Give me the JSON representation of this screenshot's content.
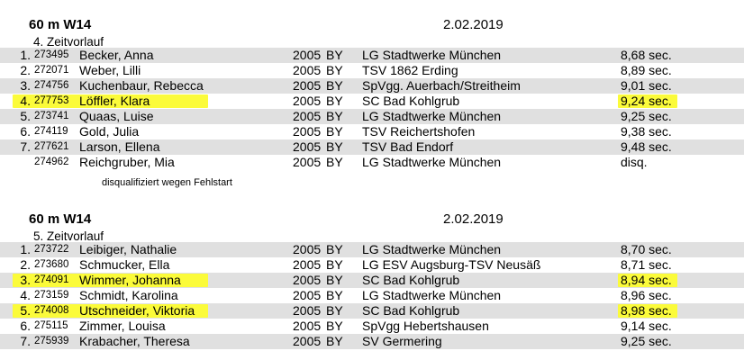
{
  "results": [
    {
      "event": "60 m W14",
      "date": "2.02.2019",
      "heat": "4. Zeitvorlauf",
      "rows": [
        {
          "place": "1.",
          "bib": "273495",
          "name": "Becker, Anna",
          "year": "2005",
          "state": "BY",
          "club": "LG Stadtwerke München",
          "time": "8,68 sec.",
          "highlight": false
        },
        {
          "place": "2.",
          "bib": "272071",
          "name": "Weber, Lilli",
          "year": "2005",
          "state": "BY",
          "club": "TSV 1862 Erding",
          "time": "8,89 sec.",
          "highlight": false
        },
        {
          "place": "3.",
          "bib": "274756",
          "name": "Kuchenbaur, Rebecca",
          "year": "2005",
          "state": "BY",
          "club": "SpVgg. Auerbach/Streitheim",
          "time": "9,01 sec.",
          "highlight": false
        },
        {
          "place": "4.",
          "bib": "277753",
          "name": "Löffler, Klara",
          "year": "2005",
          "state": "BY",
          "club": "SC Bad Kohlgrub",
          "time": "9,24 sec.",
          "highlight": true
        },
        {
          "place": "5.",
          "bib": "273741",
          "name": "Quaas, Luise",
          "year": "2005",
          "state": "BY",
          "club": "LG Stadtwerke München",
          "time": "9,25 sec.",
          "highlight": false
        },
        {
          "place": "6.",
          "bib": "274119",
          "name": "Gold, Julia",
          "year": "2005",
          "state": "BY",
          "club": "TSV Reichertshofen",
          "time": "9,38 sec.",
          "highlight": false
        },
        {
          "place": "7.",
          "bib": "277621",
          "name": "Larson, Ellena",
          "year": "2005",
          "state": "BY",
          "club": "TSV Bad Endorf",
          "time": "9,48 sec.",
          "highlight": false
        },
        {
          "place": "",
          "bib": "274962",
          "name": "Reichgruber, Mia",
          "year": "2005",
          "state": "BY",
          "club": "LG Stadtwerke München",
          "time": "disq.",
          "highlight": false
        }
      ],
      "note": "disqualifiziert wegen Fehlstart"
    },
    {
      "event": "60 m W14",
      "date": "2.02.2019",
      "heat": "5. Zeitvorlauf",
      "rows": [
        {
          "place": "1.",
          "bib": "273722",
          "name": "Leibiger, Nathalie",
          "year": "2005",
          "state": "BY",
          "club": "LG Stadtwerke München",
          "time": "8,70 sec.",
          "highlight": false
        },
        {
          "place": "2.",
          "bib": "273680",
          "name": "Schmucker, Ella",
          "year": "2005",
          "state": "BY",
          "club": "LG ESV Augsburg-TSV Neusäß",
          "time": "8,71 sec.",
          "highlight": false
        },
        {
          "place": "3.",
          "bib": "274091",
          "name": "Wimmer, Johanna",
          "year": "2005",
          "state": "BY",
          "club": "SC Bad Kohlgrub",
          "time": "8,94 sec.",
          "highlight": true
        },
        {
          "place": "4.",
          "bib": "273159",
          "name": "Schmidt, Karolina",
          "year": "2005",
          "state": "BY",
          "club": "LG Stadtwerke München",
          "time": "8,96 sec.",
          "highlight": false
        },
        {
          "place": "5.",
          "bib": "274008",
          "name": "Utschneider, Viktoria",
          "year": "2005",
          "state": "BY",
          "club": "SC Bad Kohlgrub",
          "time": "8,98 sec.",
          "highlight": true
        },
        {
          "place": "6.",
          "bib": "275115",
          "name": "Zimmer, Louisa",
          "year": "2005",
          "state": "BY",
          "club": "SpVgg Hebertshausen",
          "time": "9,14 sec.",
          "highlight": false
        },
        {
          "place": "7.",
          "bib": "275939",
          "name": "Krabacher, Theresa",
          "year": "2005",
          "state": "BY",
          "club": "SV Germering",
          "time": "9,25 sec.",
          "highlight": false
        }
      ],
      "note": ""
    }
  ],
  "colors": {
    "row_grey": "#e0e0e0",
    "highlight": "#fbfb3a"
  }
}
